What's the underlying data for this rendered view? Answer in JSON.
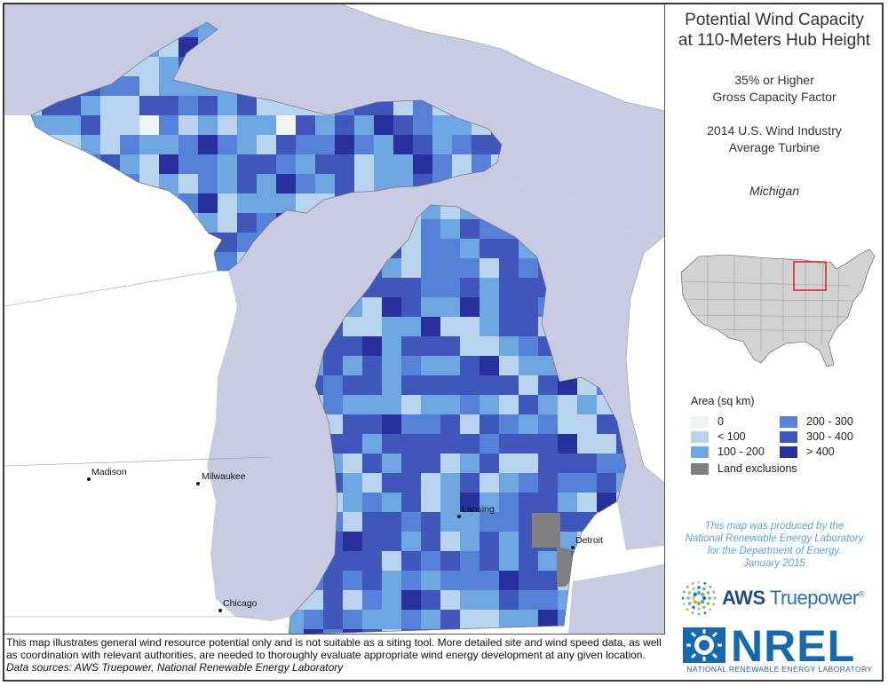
{
  "title": {
    "line1": "Potential Wind Capacity",
    "line2": "at 110-Meters Hub Height",
    "subtitle1": "35% or Higher",
    "subtitle2": "Gross Capacity Factor",
    "subtitle3": "2014 U.S. Wind Industry",
    "subtitle4": "Average Turbine",
    "state": "Michigan"
  },
  "legend": {
    "title": "Area (sq km)",
    "items": [
      {
        "label": "0",
        "color": "#eef5f5"
      },
      {
        "label": "< 100",
        "color": "#b8d4ee"
      },
      {
        "label": "100 - 200",
        "color": "#6ea6e2"
      },
      {
        "label": "200 - 300",
        "color": "#5582d8"
      },
      {
        "label": "300 - 400",
        "color": "#3f56bb"
      },
      {
        "label": "> 400",
        "color": "#27309c"
      },
      {
        "label": "Land exclusions",
        "color": "#808080"
      }
    ]
  },
  "cities": {
    "madison": "Madison",
    "milwaukee": "Milwaukee",
    "chicago": "Chicago",
    "lansing": "Lansing",
    "detroit": "Detroit"
  },
  "credit": {
    "line1": "This map was produced by the",
    "line2": "National Renewable Energy Laboratory",
    "line3": "for the Department of Energy.",
    "line4": "January 2015"
  },
  "logos": {
    "aws_bold": "AWS",
    "aws_rest": "Truepower",
    "aws_mark": "®",
    "nrel": "NREL",
    "nrel_sub": "NATIONAL RENEWABLE ENERGY LABORATORY"
  },
  "disclaimer": {
    "text": "This map illustrates general wind resource potential only and is not suitable as a siting tool. More detailed site and wind speed data, as well as coordination with relevant authorities, are needed to thoroughly evaluate appropriate wind energy development at any given location.",
    "sources": "Data sources: AWS Truepower, National Renewable Energy Laboratory"
  },
  "colors": {
    "water": "#c9cbe3",
    "land": "#ffffff",
    "exclusion": "#808080",
    "highlight": "#e0262b"
  }
}
